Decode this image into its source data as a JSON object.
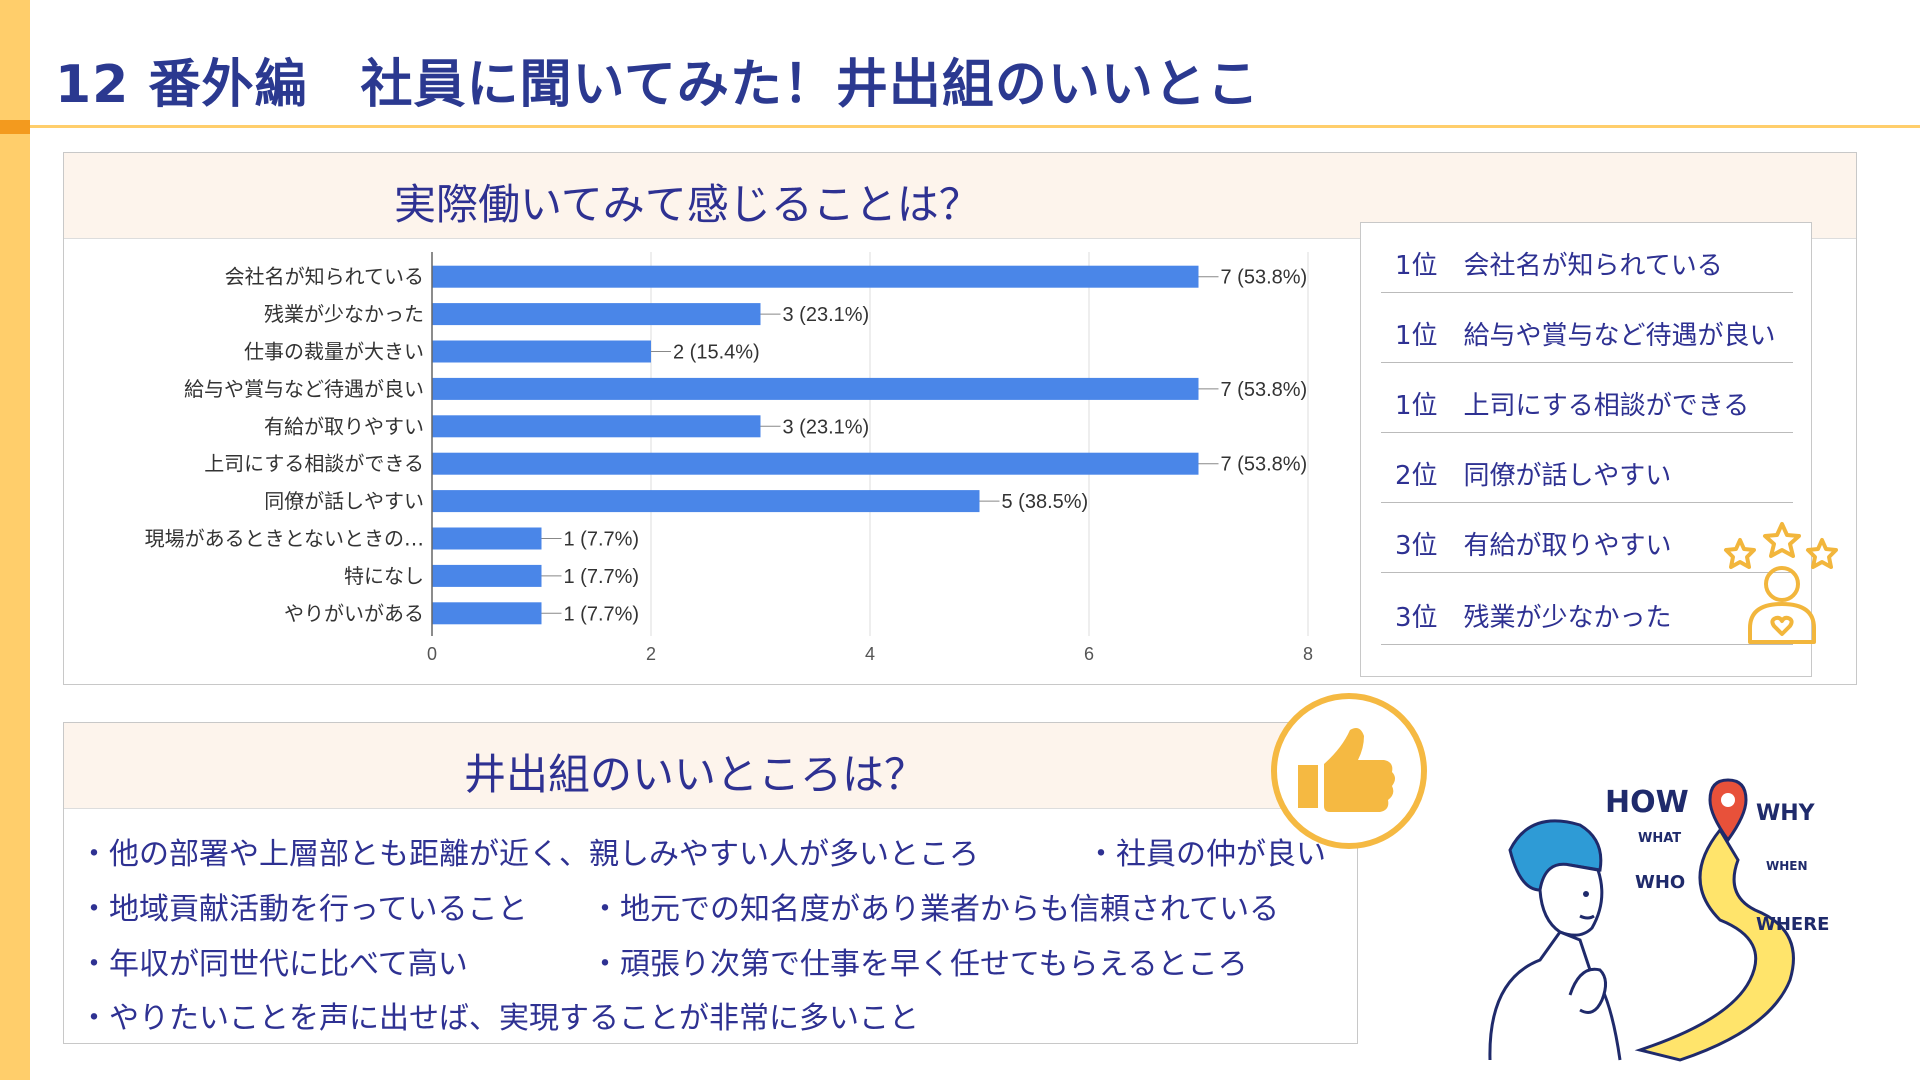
{
  "page": {
    "title": "12 番外編　社員に聞いてみた！井出組のいいとこ",
    "accent_color": "#ffce6b",
    "accent_dark": "#f39a1e",
    "text_color": "#2e3192"
  },
  "survey": {
    "title": "実際働いてみて感じることは？"
  },
  "chart_data": {
    "type": "bar",
    "orientation": "horizontal",
    "categories": [
      "会社名が知られている",
      "残業が少なかった",
      "仕事の裁量が大きい",
      "給与や賞与など待遇が良い",
      "有給が取りやすい",
      "上司にする相談ができる",
      "同僚が話しやすい",
      "現場があるときとないときの…",
      "特になし",
      "やりがいがある"
    ],
    "values": [
      7,
      3,
      2,
      7,
      3,
      7,
      5,
      1,
      1,
      1
    ],
    "data_labels": [
      "7 (53.8%)",
      "3 (23.1%)",
      "2 (15.4%)",
      "7 (53.8%)",
      "3 (23.1%)",
      "7 (53.8%)",
      "5 (38.5%)",
      "1 (7.7%)",
      "1 (7.7%)",
      "1 (7.7%)"
    ],
    "xlim": [
      0,
      8
    ],
    "x_ticks": [
      "0",
      "2",
      "4",
      "6",
      "8"
    ],
    "grid": true,
    "bar_color": "#4a86e8",
    "title": "",
    "xlabel": "",
    "ylabel": ""
  },
  "ranking": [
    "1位　会社名が知られている",
    "1位　給与や賞与など待遇が良い",
    "1位　上司にする相談ができる",
    "2位　同僚が話しやすい",
    "3位　有給が取りやすい",
    "3位　残業が少なかった"
  ],
  "good_points": {
    "title": "井出組のいいところは？",
    "items": [
      "・他の部署や上層部とも距離が近く、親しみやすい人が多いところ",
      "・社員の仲が良い",
      "・地域貢献活動を行っていること",
      "・地元での知名度があり業者からも信頼されている",
      "・年収が同世代に比べて高い",
      "・頑張り次第で仕事を早く任せてもらえるところ",
      "・やりたいことを声に出せば、実現することが非常に多いこと"
    ]
  },
  "illustration": {
    "words": [
      "HOW",
      "WHY",
      "WHAT",
      "WHEN",
      "WHO",
      "WHERE"
    ]
  }
}
